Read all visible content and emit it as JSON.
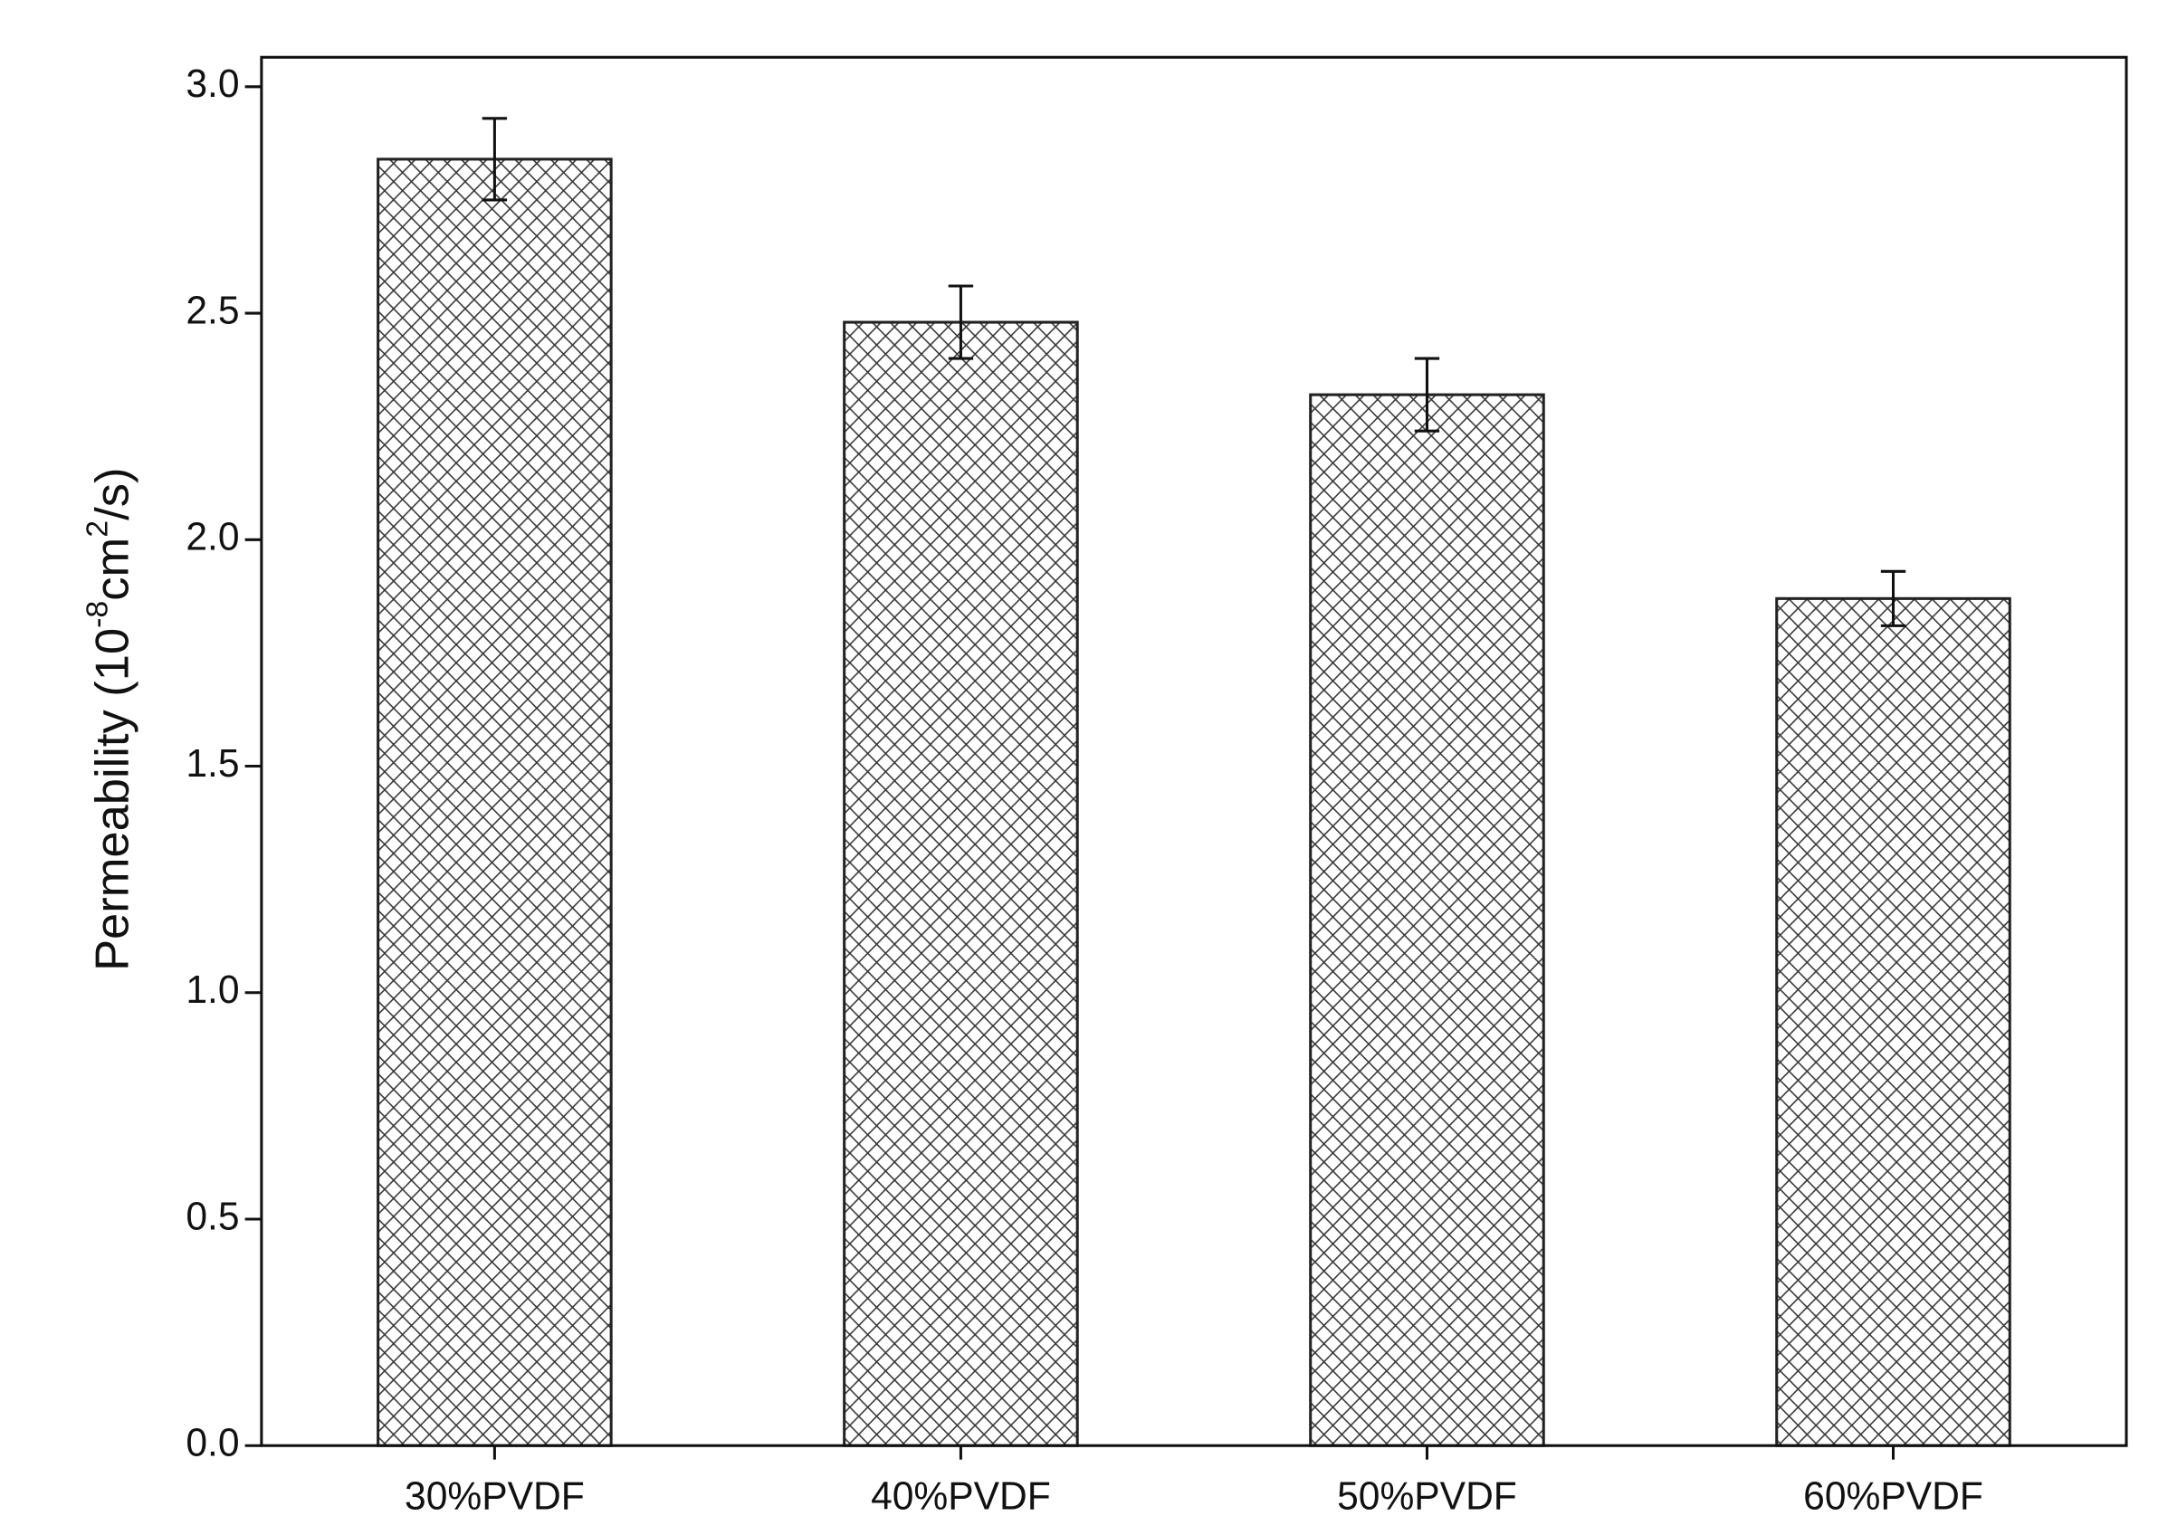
{
  "chart_data": {
    "type": "bar",
    "ylabel": [
      "Permeability (10",
      "-8",
      "cm",
      "2",
      "/s)"
    ],
    "categories": [
      "30%PVDF",
      "40%PVDF",
      "50%PVDF",
      "60%PVDF"
    ],
    "values": [
      2.84,
      2.48,
      2.32,
      1.87
    ],
    "errors": [
      0.09,
      0.08,
      0.08,
      0.06
    ],
    "color": "#222222",
    "ylim": [
      0,
      3.065
    ],
    "yticks": [
      {
        "value": 0,
        "label": "0.0"
      },
      0.5,
      {
        "value": 1,
        "label": "1.0"
      },
      1.5,
      {
        "value": 2,
        "label": "2.0"
      },
      2.5,
      {
        "value": 3,
        "label": "3.0"
      }
    ],
    "grid": false
  }
}
